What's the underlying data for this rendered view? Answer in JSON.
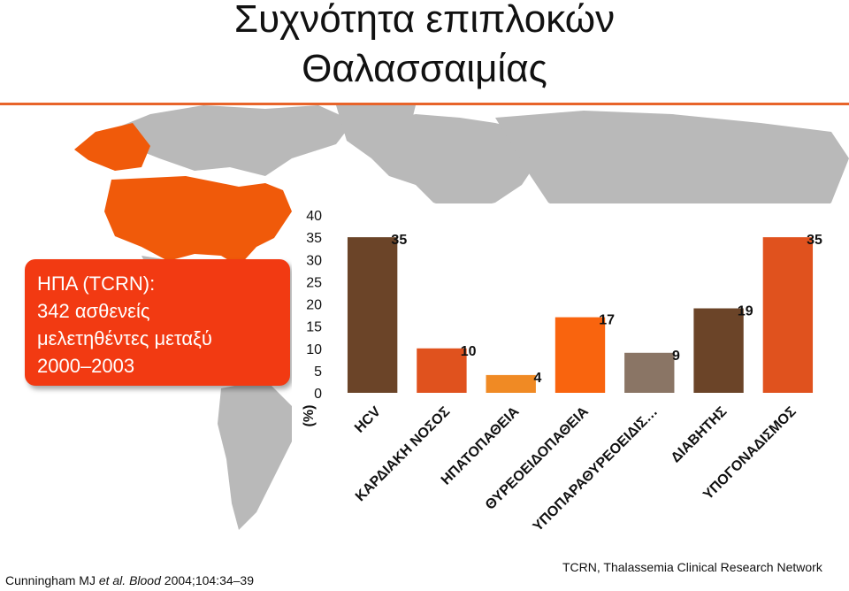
{
  "title": {
    "line1": "Συχνότητα επιπλοκών",
    "line2": "Θαλασσαιμίας"
  },
  "callout": {
    "line1": "ΗΠΑ (TCRN):",
    "line2": "342 ασθενείς",
    "line3": "μελετηθέντες μεταξύ",
    "line4": "2000–2003"
  },
  "chart_data": {
    "type": "bar",
    "categories": [
      "HCV",
      "ΚΑΡΔΙΑΚΗ ΝΟΣΟΣ",
      "ΗΠΑΤΟΠΑΘΕΙΑ",
      "ΘΥΡΕΟΕΙΔΟΠΑΘΕΙΑ",
      "ΥΠΟΠΑΡΑΘΥΡΕΟΕΙΔΙΣ…",
      "ΔΙΑΒΗΤΗΣ",
      "ΥΠΟΓΟΝΑΔΙΣΜΟΣ"
    ],
    "values": [
      35,
      10,
      4,
      17,
      9,
      19,
      35
    ],
    "data_labels": [
      "35",
      "10",
      "4",
      "17",
      "9",
      "19",
      "35"
    ],
    "bar_colors": [
      "#6b4428",
      "#e0521e",
      "#f08a24",
      "#f9640e",
      "#8a7565",
      "#6b4428",
      "#e0521e"
    ],
    "ylabel": "(%)",
    "yticks": [
      "0",
      "5",
      "10",
      "15",
      "20",
      "25",
      "30",
      "35",
      "40"
    ],
    "ylim": [
      0,
      40
    ],
    "grid": false,
    "legend": "none"
  },
  "footer": {
    "citation_author": "Cunningham MJ ",
    "citation_etal": "et al. Blood",
    "citation_rest": " 2004;104:34–39",
    "source": "TCRN, Thalassemia Clinical Research Network"
  },
  "colors": {
    "accent": "#e8642a",
    "callout_bg": "#f23a12",
    "map_land": "#b9b9b9",
    "map_usa": "#f05a0a"
  }
}
